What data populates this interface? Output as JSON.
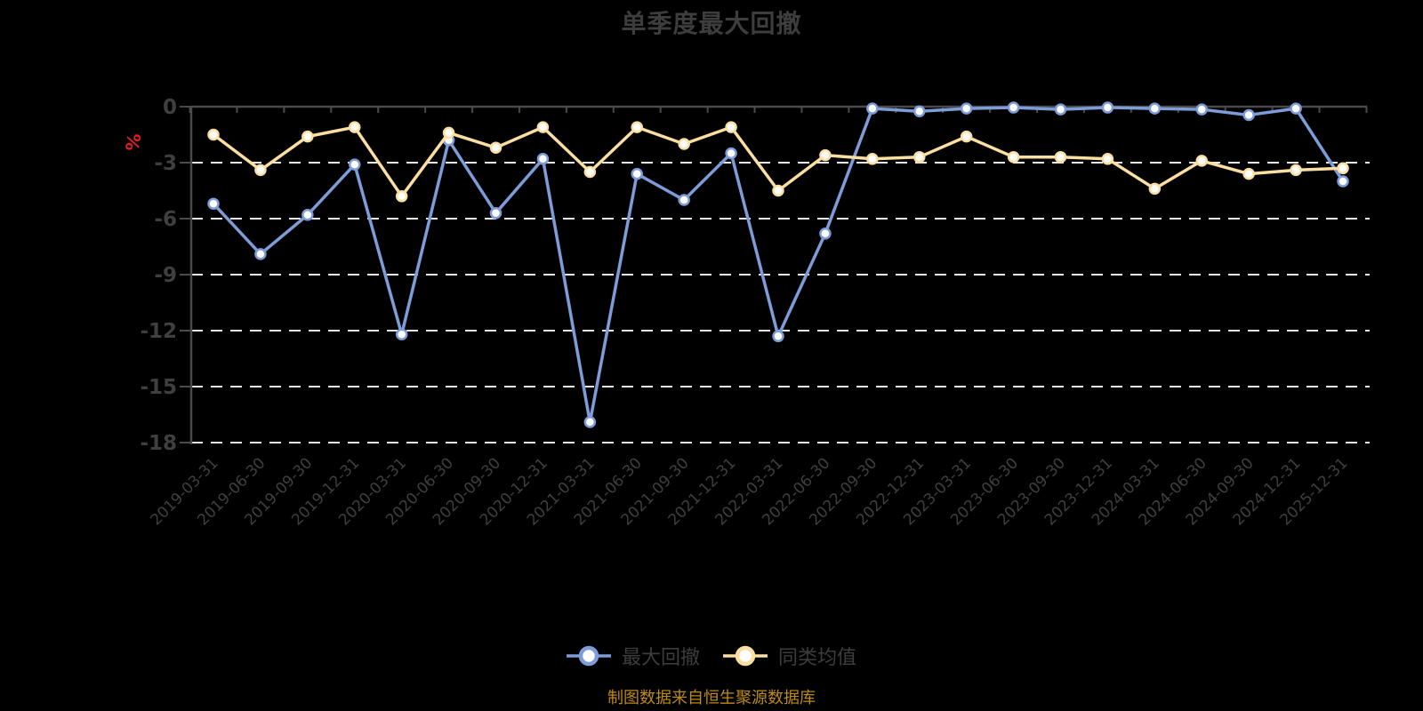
{
  "title": "单季度最大回撤",
  "source_note": "制图数据来自恒生聚源数据库",
  "y_axis": {
    "unit": "%"
  },
  "colors": {
    "background": "#000000",
    "title_text": "#3d3d3d",
    "axis_line": "#4a4a4a",
    "axis_text": "#3f3f3f",
    "gridline": "#e8e8e8",
    "unit_red": "#e02020",
    "source_gold": "#bd8a14",
    "series_blue": "#7d9cd8",
    "series_yellow": "#fbdea2"
  },
  "chart_data": {
    "type": "line",
    "title": "单季度最大回撤",
    "xlabel": "",
    "ylabel": "%",
    "ylim": [
      -18,
      0
    ],
    "y_ticks": [
      0,
      -3,
      -6,
      -9,
      -12,
      -15,
      -18
    ],
    "grid": "horizontal-dashed-white",
    "legend_position": "bottom",
    "marker": "circle-white-fill",
    "categories": [
      "2019-03-31",
      "2019-06-30",
      "2019-09-30",
      "2019-12-31",
      "2020-03-31",
      "2020-06-30",
      "2020-09-30",
      "2020-12-31",
      "2021-03-31",
      "2021-06-30",
      "2021-09-30",
      "2021-12-31",
      "2022-03-31",
      "2022-06-30",
      "2022-09-30",
      "2022-12-31",
      "2023-03-31",
      "2023-06-30",
      "2023-09-30",
      "2023-12-31",
      "2024-03-31",
      "2024-06-30",
      "2024-09-30",
      "2024-12-31",
      "2025-12-31"
    ],
    "series": [
      {
        "name": "最大回撤",
        "color": "#7d9cd8",
        "values": [
          -5.2,
          -7.9,
          -5.8,
          -3.1,
          -12.2,
          -1.8,
          -5.7,
          -2.8,
          -16.9,
          -3.6,
          -5.0,
          -2.5,
          -12.3,
          -6.8,
          -0.1,
          -0.25,
          -0.1,
          -0.05,
          -0.15,
          -0.05,
          -0.1,
          -0.15,
          -0.45,
          -0.1,
          -4.0
        ]
      },
      {
        "name": "同类均值",
        "color": "#fbdea2",
        "values": [
          -1.5,
          -3.4,
          -1.6,
          -1.1,
          -4.8,
          -1.4,
          -2.2,
          -1.1,
          -3.5,
          -1.1,
          -2.0,
          -1.1,
          -4.5,
          -2.6,
          -2.8,
          -2.7,
          -1.6,
          -2.7,
          -2.7,
          -2.8,
          -4.4,
          -2.9,
          -3.6,
          -3.4,
          -3.3
        ]
      }
    ]
  }
}
